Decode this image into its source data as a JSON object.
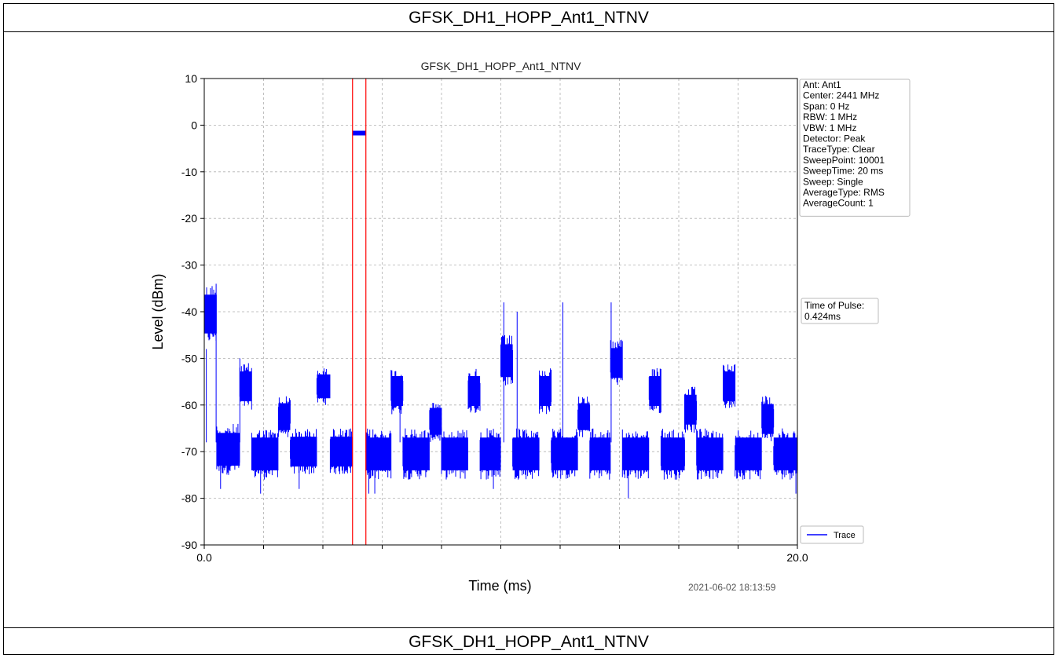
{
  "header": {
    "title": "GFSK_DH1_HOPP_Ant1_NTNV"
  },
  "footer": {
    "caption": "GFSK_DH1_HOPP_Ant1_NTNV"
  },
  "chart_data": {
    "type": "line",
    "title": "GFSK_DH1_HOPP_Ant1_NTNV",
    "xlabel": "Time (ms)",
    "ylabel": "Level (dBm)",
    "xlim": [
      0.0,
      20.0
    ],
    "ylim": [
      -90,
      10
    ],
    "x_tick_labels": [
      {
        "value": 0.0,
        "label": "0.0"
      },
      {
        "value": 20.0,
        "label": "20.0"
      }
    ],
    "x_minor_ticks": [
      2,
      4,
      6,
      8,
      10,
      12,
      14,
      16,
      18
    ],
    "y_ticks": [
      10,
      0,
      -10,
      -20,
      -30,
      -40,
      -50,
      -60,
      -70,
      -80,
      -90
    ],
    "grid": true,
    "legend": {
      "position": "bottom-right",
      "entries": [
        "Trace"
      ]
    },
    "series": [
      {
        "name": "Trace",
        "color": "#0000ff",
        "segments": [
          {
            "x0": 0.0,
            "x1": 0.42,
            "top": -34,
            "base": -47
          },
          {
            "x0": 0.42,
            "x1": 1.2,
            "top": -64,
            "base": -75
          },
          {
            "x0": 1.2,
            "x1": 1.6,
            "top": -51,
            "base": -61
          },
          {
            "x0": 1.6,
            "x1": 2.5,
            "top": -65,
            "base": -76
          },
          {
            "x0": 2.5,
            "x1": 2.9,
            "top": -58,
            "base": -67
          },
          {
            "x0": 2.9,
            "x1": 3.8,
            "top": -65,
            "base": -75
          },
          {
            "x0": 3.8,
            "x1": 4.25,
            "top": -52,
            "base": -60
          },
          {
            "x0": 4.25,
            "x1": 5.0,
            "top": -65,
            "base": -75
          },
          {
            "x0": 5.0,
            "x1": 5.45,
            "top": -1.2,
            "base": -2.2
          },
          {
            "x0": 5.45,
            "x1": 6.3,
            "top": -65,
            "base": -76
          },
          {
            "x0": 6.3,
            "x1": 6.7,
            "top": -52,
            "base": -62
          },
          {
            "x0": 6.7,
            "x1": 7.6,
            "top": -65,
            "base": -76
          },
          {
            "x0": 7.6,
            "x1": 8.0,
            "top": -59,
            "base": -68
          },
          {
            "x0": 8.0,
            "x1": 8.9,
            "top": -65,
            "base": -76
          },
          {
            "x0": 8.9,
            "x1": 9.3,
            "top": -52,
            "base": -62
          },
          {
            "x0": 9.3,
            "x1": 10.0,
            "top": -65,
            "base": -76
          },
          {
            "x0": 10.0,
            "x1": 10.4,
            "top": -45,
            "base": -56
          },
          {
            "x0": 10.4,
            "x1": 11.3,
            "top": -65,
            "base": -76
          },
          {
            "x0": 11.3,
            "x1": 11.7,
            "top": -52,
            "base": -62
          },
          {
            "x0": 11.7,
            "x1": 12.6,
            "top": -65,
            "base": -76
          },
          {
            "x0": 12.6,
            "x1": 13.0,
            "top": -58,
            "base": -67
          },
          {
            "x0": 13.0,
            "x1": 13.7,
            "top": -65,
            "base": -76
          },
          {
            "x0": 13.7,
            "x1": 14.1,
            "top": -46,
            "base": -56
          },
          {
            "x0": 14.1,
            "x1": 15.0,
            "top": -65,
            "base": -76
          },
          {
            "x0": 15.0,
            "x1": 15.4,
            "top": -52,
            "base": -62
          },
          {
            "x0": 15.4,
            "x1": 16.2,
            "top": -65,
            "base": -76
          },
          {
            "x0": 16.2,
            "x1": 16.6,
            "top": -56,
            "base": -66
          },
          {
            "x0": 16.6,
            "x1": 17.5,
            "top": -65,
            "base": -76
          },
          {
            "x0": 17.5,
            "x1": 17.9,
            "top": -51,
            "base": -61
          },
          {
            "x0": 17.9,
            "x1": 18.8,
            "top": -65,
            "base": -76
          },
          {
            "x0": 18.8,
            "x1": 19.2,
            "top": -58,
            "base": -68
          },
          {
            "x0": 19.2,
            "x1": 20.0,
            "top": -65,
            "base": -76
          }
        ],
        "spikes": [
          {
            "x": 0.07,
            "y": -48
          },
          {
            "x": 0.4,
            "y": -34
          },
          {
            "x": 0.55,
            "y": -78
          },
          {
            "x": 1.2,
            "y": -50
          },
          {
            "x": 1.9,
            "y": -79
          },
          {
            "x": 3.2,
            "y": -78
          },
          {
            "x": 5.55,
            "y": -79
          },
          {
            "x": 5.75,
            "y": -79
          },
          {
            "x": 6.6,
            "y": -61
          },
          {
            "x": 9.75,
            "y": -78
          },
          {
            "x": 10.1,
            "y": -38
          },
          {
            "x": 10.55,
            "y": -40
          },
          {
            "x": 12.09,
            "y": -38
          },
          {
            "x": 13.72,
            "y": -38
          },
          {
            "x": 14.3,
            "y": -80
          },
          {
            "x": 19.95,
            "y": -79
          }
        ]
      }
    ],
    "markers": [
      {
        "x": 5.0,
        "color": "#ff0000"
      },
      {
        "x": 5.45,
        "color": "#ff0000"
      }
    ],
    "info_box": [
      "Ant: Ant1",
      "Center: 2441 MHz",
      "Span: 0 Hz",
      "RBW: 1 MHz",
      "VBW: 1 MHz",
      "Detector: Peak",
      "TraceType: Clear",
      "SweepPoint: 10001",
      "SweepTime: 20 ms",
      "Sweep: Single",
      "AverageType: RMS",
      "AverageCount: 1"
    ],
    "pulse_box": [
      "Time of Pulse:",
      " 0.424ms"
    ],
    "timestamp": "2021-06-02 18:13:59"
  }
}
